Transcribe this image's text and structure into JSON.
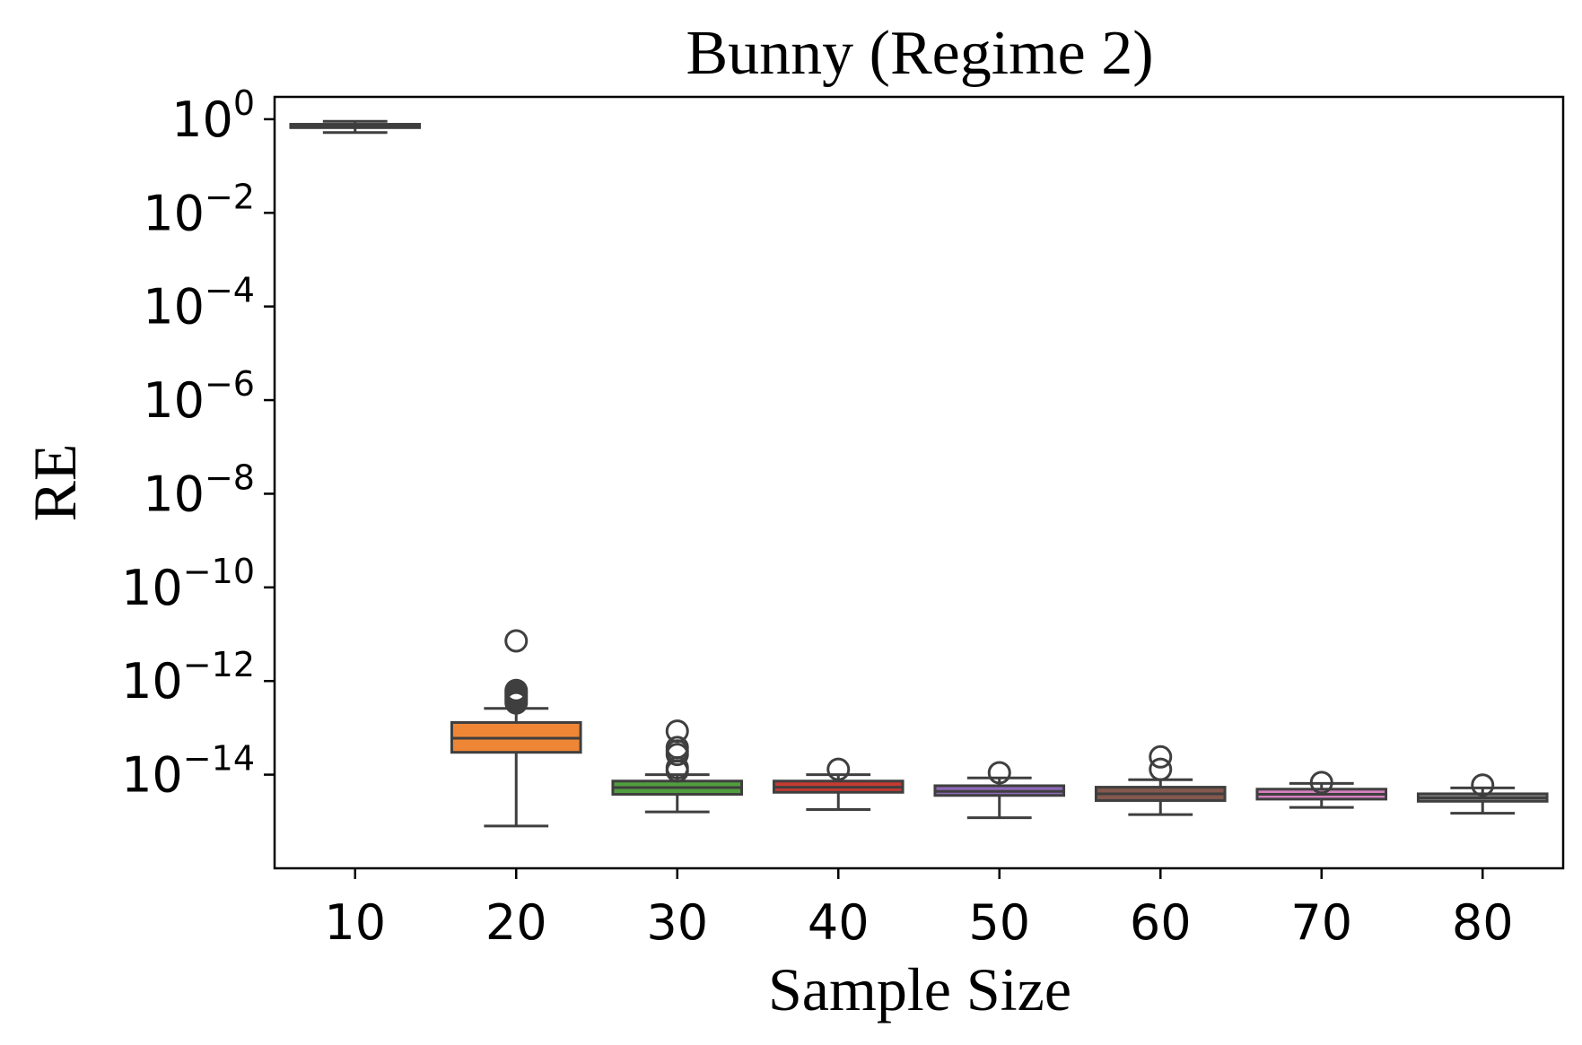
{
  "chart_data": {
    "type": "box",
    "title": "Bunny (Regime 2)",
    "xlabel": "Sample Size",
    "ylabel": "RE",
    "yscale": "log",
    "ylim": [
      1e-16,
      3
    ],
    "categories": [
      "10",
      "20",
      "30",
      "40",
      "50",
      "60",
      "70",
      "80"
    ],
    "y_ticks": [
      {
        "exp": "0",
        "value": 1
      },
      {
        "exp": "−2",
        "value": 0.01
      },
      {
        "exp": "−4",
        "value": 0.0001
      },
      {
        "exp": "−6",
        "value": 1e-06
      },
      {
        "exp": "−8",
        "value": 1e-08
      },
      {
        "exp": "−10",
        "value": 1e-10
      },
      {
        "exp": "−12",
        "value": 1e-12
      },
      {
        "exp": "−14",
        "value": 1e-14
      }
    ],
    "tick_base": "10",
    "boxes": [
      {
        "category": "10",
        "color": "#3b75af",
        "whislo": 0.52,
        "q1": 0.66,
        "med": 0.72,
        "q3": 0.78,
        "whishi": 0.9,
        "fliers": []
      },
      {
        "category": "20",
        "color": "#ef8636",
        "whislo": 8e-16,
        "q1": 3e-14,
        "med": 6e-14,
        "q3": 1.3e-13,
        "whishi": 2.6e-13,
        "fliers": [
          7.2e-12,
          3.4e-13,
          3.8e-13,
          4.2e-13,
          4.7e-13,
          5.2e-13,
          5.8e-13,
          6.3e-13
        ]
      },
      {
        "category": "30",
        "color": "#519e3e",
        "whislo": 1.6e-15,
        "q1": 3.8e-15,
        "med": 5.3e-15,
        "q3": 7.3e-15,
        "whishi": 1e-14,
        "fliers": [
          8.5e-14,
          3.8e-14,
          3.2e-14,
          2.7e-14,
          1.4e-14,
          1.2e-14
        ]
      },
      {
        "category": "40",
        "color": "#c53a32",
        "whislo": 1.8e-15,
        "q1": 4.2e-15,
        "med": 5.4e-15,
        "q3": 7.3e-15,
        "whishi": 1e-14,
        "fliers": [
          1.3e-14
        ]
      },
      {
        "category": "50",
        "color": "#8d69b8",
        "whislo": 1.2e-15,
        "q1": 3.6e-15,
        "med": 4.4e-15,
        "q3": 5.8e-15,
        "whishi": 8.5e-15,
        "fliers": [
          1.1e-14
        ]
      },
      {
        "category": "60",
        "color": "#84584e",
        "whislo": 1.4e-15,
        "q1": 2.8e-15,
        "med": 3.9e-15,
        "q3": 5.4e-15,
        "whishi": 7.8e-15,
        "fliers": [
          2.4e-14,
          1.3e-14
        ]
      },
      {
        "category": "70",
        "color": "#d57fbe",
        "whislo": 2e-15,
        "q1": 3e-15,
        "med": 3.8e-15,
        "q3": 4.9e-15,
        "whishi": 6.5e-15,
        "fliers": [
          6.8e-15
        ]
      },
      {
        "category": "80",
        "color": "#7f7f7f",
        "whislo": 1.5e-15,
        "q1": 2.7e-15,
        "med": 3.2e-15,
        "q3": 3.9e-15,
        "whishi": 5.2e-15,
        "fliers": [
          6e-15
        ]
      }
    ],
    "grid": false,
    "line_color": "#3f3f3f"
  }
}
